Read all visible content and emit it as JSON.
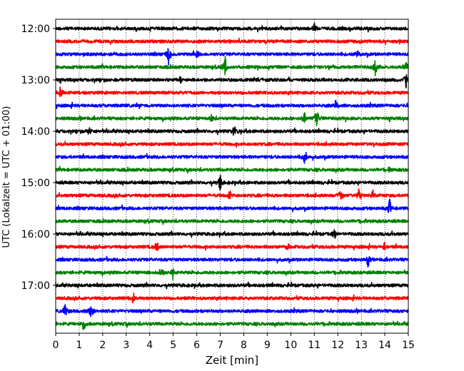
{
  "chart_data": {
    "type": "line",
    "title": "",
    "xlabel": "Zeit  [min]",
    "ylabel": "UTC (Lokalzeit = UTC + 01:00)",
    "xlim": [
      0,
      15
    ],
    "x_ticks": [
      "0",
      "1",
      "2",
      "3",
      "4",
      "5",
      "6",
      "7",
      "8",
      "9",
      "10",
      "11",
      "12",
      "13",
      "14",
      "15"
    ],
    "y_ticks": [
      "12:00",
      "13:00",
      "14:00",
      "15:00",
      "16:00",
      "17:00"
    ],
    "vertical_grid": true,
    "color_cycle": [
      "#000000",
      "#ff0000",
      "#0000ff",
      "#008000"
    ],
    "traces": [
      {
        "start": "12:00",
        "events": [
          {
            "min": 11.0,
            "amp": 1.4
          }
        ]
      },
      {
        "start": "12:15",
        "events": []
      },
      {
        "start": "12:30",
        "events": [
          {
            "min": 4.8,
            "amp": 3.0
          },
          {
            "min": 6.0,
            "amp": 1.3
          },
          {
            "min": 12.8,
            "amp": 1.3
          }
        ]
      },
      {
        "start": "12:45",
        "events": [
          {
            "min": 7.2,
            "amp": 3.0
          },
          {
            "min": 13.6,
            "amp": 2.4
          },
          {
            "min": 14.9,
            "amp": 1.8
          }
        ]
      },
      {
        "start": "13:00",
        "events": [
          {
            "min": 5.3,
            "amp": 1.2
          },
          {
            "min": 14.9,
            "amp": 2.2
          }
        ]
      },
      {
        "start": "13:15",
        "events": [
          {
            "min": 0.2,
            "amp": 1.6
          }
        ]
      },
      {
        "start": "13:30",
        "events": [
          {
            "min": 11.9,
            "amp": 1.4
          }
        ]
      },
      {
        "start": "13:45",
        "events": [
          {
            "min": 6.6,
            "amp": 2.0
          },
          {
            "min": 10.6,
            "amp": 2.2
          },
          {
            "min": 11.1,
            "amp": 3.4
          }
        ]
      },
      {
        "start": "14:00",
        "events": [
          {
            "min": 1.4,
            "amp": 1.6
          },
          {
            "min": 7.6,
            "amp": 2.0
          }
        ]
      },
      {
        "start": "14:15",
        "events": []
      },
      {
        "start": "14:30",
        "events": [
          {
            "min": 10.6,
            "amp": 2.0
          }
        ]
      },
      {
        "start": "14:45",
        "events": [
          {
            "min": 14.2,
            "amp": 1.2
          }
        ]
      },
      {
        "start": "15:00",
        "events": [
          {
            "min": 7.0,
            "amp": 2.4
          }
        ]
      },
      {
        "start": "15:15",
        "events": [
          {
            "min": 7.4,
            "amp": 1.6
          },
          {
            "min": 12.1,
            "amp": 1.8
          },
          {
            "min": 12.9,
            "amp": 1.8
          },
          {
            "min": 13.5,
            "amp": 1.6
          }
        ]
      },
      {
        "start": "15:30",
        "events": [
          {
            "min": 14.2,
            "amp": 2.6
          }
        ]
      },
      {
        "start": "15:45",
        "events": []
      },
      {
        "start": "16:00",
        "events": [
          {
            "min": 11.9,
            "amp": 1.8
          }
        ]
      },
      {
        "start": "16:15",
        "events": [
          {
            "min": 4.3,
            "amp": 1.6
          },
          {
            "min": 9.9,
            "amp": 1.2
          },
          {
            "min": 14.0,
            "amp": 1.6
          }
        ]
      },
      {
        "start": "16:30",
        "events": [
          {
            "min": 13.3,
            "amp": 2.2
          }
        ]
      },
      {
        "start": "16:45",
        "events": [
          {
            "min": 4.5,
            "amp": 2.0
          },
          {
            "min": 5.0,
            "amp": 1.4
          }
        ]
      },
      {
        "start": "17:00",
        "events": []
      },
      {
        "start": "17:15",
        "events": [
          {
            "min": 3.3,
            "amp": 1.6
          }
        ]
      },
      {
        "start": "17:30",
        "events": [
          {
            "min": 0.4,
            "amp": 2.4
          },
          {
            "min": 1.5,
            "amp": 2.2
          }
        ]
      },
      {
        "start": "17:45",
        "events": [
          {
            "min": 1.2,
            "amp": 2.2
          }
        ]
      }
    ]
  }
}
